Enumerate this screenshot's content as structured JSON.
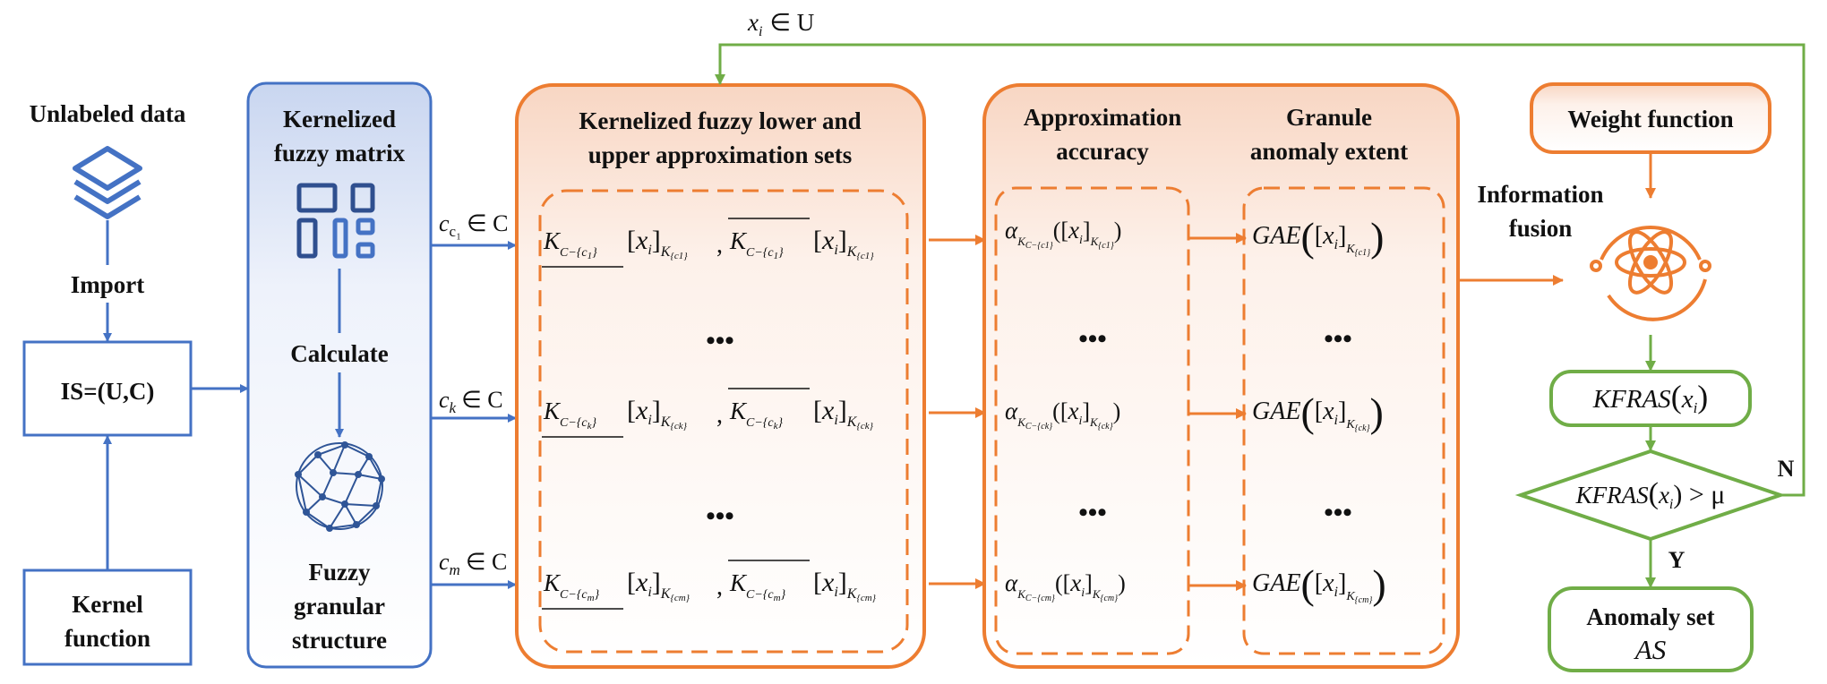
{
  "colors": {
    "blue": "#4472C4",
    "orange": "#ED7D31",
    "green": "#70AD47",
    "ink": "#111111"
  },
  "left": {
    "unlabeled": "Unlabeled data",
    "import": "Import",
    "is": "IS=(U,C)",
    "kernel": [
      "Kernel",
      "function"
    ],
    "icons": [
      "layers-icon",
      "layout-grid-icon",
      "sphere-network-icon"
    ]
  },
  "matrix": {
    "title": [
      "Kernelized",
      "fuzzy matrix"
    ],
    "calculate": "Calculate",
    "structure": [
      "Fuzzy",
      "granular",
      "structure"
    ]
  },
  "approx": {
    "title": [
      "Kernelized fuzzy lower and",
      "upper approximation sets"
    ],
    "attrs": [
      "c₁",
      "c_k",
      "c_m"
    ],
    "in_set": "∈ C",
    "dots": "•••"
  },
  "accuracy": {
    "title": [
      "Approximation",
      "accuracy"
    ]
  },
  "gae": {
    "title": [
      "Granule",
      "anomaly extent"
    ],
    "func": "GAE"
  },
  "fusion": {
    "label": [
      "Information",
      "fusion"
    ]
  },
  "right": {
    "weight": "Weight function",
    "kfras": "KFRAS",
    "cond_rel": ") > μ",
    "anomaly": [
      "Anomaly set",
      "AS"
    ],
    "yes": "Y",
    "no": "N",
    "icon": "atom-icon"
  },
  "feedback": {
    "xi": "x",
    "in_u": "∈ U"
  }
}
